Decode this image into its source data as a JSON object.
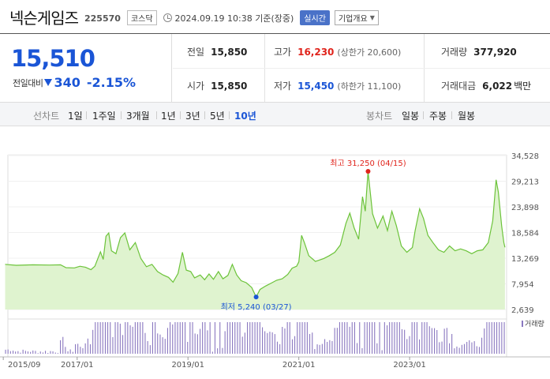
{
  "header": {
    "name": "넥슨게임즈",
    "code": "225570",
    "market": "코스닥",
    "datetime": "2024.09.19 10:38 기준(장중)",
    "realtime": "실시간",
    "company_info": "기업개요"
  },
  "price": {
    "current": "15,510",
    "change_label": "전일대비",
    "change": "340",
    "change_pct": "-2.15%"
  },
  "stats": {
    "prev_close_label": "전일",
    "prev_close": "15,850",
    "high_label": "고가",
    "high": "16,230",
    "upper_limit": "(상한가 20,600)",
    "volume_label": "거래량",
    "volume": "377,920",
    "open_label": "시가",
    "open": "15,850",
    "low_label": "저가",
    "low": "15,450",
    "lower_limit": "(하한가 11,100)",
    "amount_label": "거래대금",
    "amount": "6,022",
    "amount_unit": "백만"
  },
  "tabs": {
    "line_label": "선차트",
    "line": [
      "1일",
      "1주일",
      "3개월",
      "1년",
      "3년",
      "5년",
      "10년"
    ],
    "active": "10년",
    "candle_label": "봉차트",
    "candle": [
      "일봉",
      "주봉",
      "월봉"
    ]
  },
  "colors": {
    "price_down": "#1a55d6",
    "price_up": "#e0241c",
    "line": "#6cc33a",
    "fill": "#dff3cf",
    "volume": "#8a78c0"
  },
  "chart_data": {
    "type": "area",
    "period": "10년",
    "x_ticks": [
      "2015/09",
      "2017/01",
      "2019/01",
      "2021/01",
      "2023/01"
    ],
    "y_ticks": [
      34528,
      29213,
      23898,
      18584,
      13269,
      7954,
      2639
    ],
    "y_tick_labels": [
      "34,528",
      "29,213",
      "23,898",
      "18,584",
      "13,269",
      "7,954",
      "2,639"
    ],
    "ylim": [
      2639,
      34528
    ],
    "high_annotation": "최고 31,250 (04/15)",
    "low_annotation": "최저 5,240 (03/27)",
    "volume_label": "거래량",
    "series": [
      {
        "values": [
          [
            2015.7,
            12000
          ],
          [
            2015.9,
            11800
          ],
          [
            2016.2,
            11900
          ],
          [
            2016.5,
            11850
          ],
          [
            2016.7,
            11900
          ],
          [
            2016.8,
            11300
          ],
          [
            2016.95,
            11250
          ],
          [
            2017.05,
            11600
          ],
          [
            2017.15,
            11400
          ],
          [
            2017.25,
            10900
          ],
          [
            2017.32,
            11600
          ],
          [
            2017.42,
            14600
          ],
          [
            2017.47,
            13000
          ],
          [
            2017.52,
            17800
          ],
          [
            2017.57,
            18500
          ],
          [
            2017.62,
            14800
          ],
          [
            2017.7,
            14200
          ],
          [
            2017.78,
            17500
          ],
          [
            2017.86,
            18500
          ],
          [
            2017.95,
            15000
          ],
          [
            2018.05,
            16500
          ],
          [
            2018.15,
            13200
          ],
          [
            2018.25,
            11500
          ],
          [
            2018.35,
            12000
          ],
          [
            2018.45,
            10500
          ],
          [
            2018.55,
            9800
          ],
          [
            2018.65,
            9300
          ],
          [
            2018.73,
            8300
          ],
          [
            2018.82,
            10100
          ],
          [
            2018.9,
            14500
          ],
          [
            2018.97,
            10800
          ],
          [
            2019.05,
            10500
          ],
          [
            2019.12,
            9200
          ],
          [
            2019.22,
            9800
          ],
          [
            2019.3,
            8800
          ],
          [
            2019.38,
            10000
          ],
          [
            2019.46,
            8900
          ],
          [
            2019.55,
            10500
          ],
          [
            2019.63,
            9000
          ],
          [
            2019.72,
            9700
          ],
          [
            2019.8,
            12000
          ],
          [
            2019.88,
            9800
          ],
          [
            2019.96,
            8600
          ],
          [
            2020.05,
            8200
          ],
          [
            2020.15,
            7200
          ],
          [
            2020.23,
            5240
          ],
          [
            2020.3,
            6800
          ],
          [
            2020.4,
            7500
          ],
          [
            2020.5,
            8100
          ],
          [
            2020.6,
            8700
          ],
          [
            2020.7,
            9000
          ],
          [
            2020.8,
            9900
          ],
          [
            2020.88,
            11200
          ],
          [
            2020.96,
            11600
          ],
          [
            2021.0,
            12500
          ],
          [
            2021.05,
            18000
          ],
          [
            2021.1,
            16500
          ],
          [
            2021.18,
            13800
          ],
          [
            2021.3,
            12600
          ],
          [
            2021.45,
            13200
          ],
          [
            2021.55,
            13800
          ],
          [
            2021.65,
            14500
          ],
          [
            2021.75,
            16000
          ],
          [
            2021.85,
            20500
          ],
          [
            2021.92,
            22600
          ],
          [
            2022.0,
            19500
          ],
          [
            2022.08,
            17200
          ],
          [
            2022.15,
            26000
          ],
          [
            2022.2,
            23000
          ],
          [
            2022.25,
            31250
          ],
          [
            2022.33,
            22500
          ],
          [
            2022.42,
            19500
          ],
          [
            2022.52,
            22000
          ],
          [
            2022.6,
            19000
          ],
          [
            2022.68,
            23000
          ],
          [
            2022.76,
            20000
          ],
          [
            2022.85,
            15800
          ],
          [
            2022.95,
            14500
          ],
          [
            2023.05,
            15500
          ],
          [
            2023.1,
            19000
          ],
          [
            2023.18,
            23500
          ],
          [
            2023.25,
            21500
          ],
          [
            2023.33,
            18000
          ],
          [
            2023.42,
            16500
          ],
          [
            2023.52,
            15000
          ],
          [
            2023.62,
            14500
          ],
          [
            2023.72,
            15800
          ],
          [
            2023.82,
            14800
          ],
          [
            2023.92,
            15200
          ],
          [
            2024.02,
            14800
          ],
          [
            2024.12,
            14200
          ],
          [
            2024.22,
            14800
          ],
          [
            2024.32,
            15000
          ],
          [
            2024.42,
            16500
          ],
          [
            2024.5,
            21000
          ],
          [
            2024.56,
            29500
          ],
          [
            2024.6,
            27000
          ],
          [
            2024.66,
            20000
          ],
          [
            2024.7,
            16500
          ],
          [
            2024.72,
            15510
          ]
        ]
      }
    ]
  }
}
